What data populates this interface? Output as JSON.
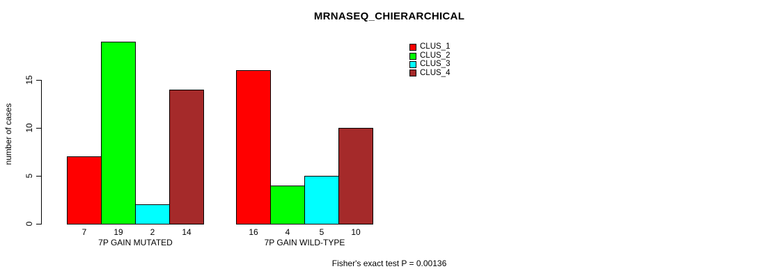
{
  "chart_data": {
    "type": "bar",
    "title": "MRNASEQ_CHIERARCHICAL",
    "xlabel": "",
    "ylabel": "number of cases",
    "ylim": [
      0,
      15
    ],
    "yticks": [
      0,
      5,
      10,
      15
    ],
    "grid": false,
    "legend_position": "top-right",
    "bar_value_labels": true,
    "categories": [
      "7P GAIN MUTATED",
      "7P GAIN WILD-TYPE"
    ],
    "series": [
      {
        "name": "CLUS_1",
        "color": "#ff0000",
        "values": [
          7,
          16
        ]
      },
      {
        "name": "CLUS_2",
        "color": "#00ff00",
        "values": [
          19,
          4
        ]
      },
      {
        "name": "CLUS_3",
        "color": "#00ffff",
        "values": [
          2,
          5
        ]
      },
      {
        "name": "CLUS_4",
        "color": "#a52a2a",
        "values": [
          14,
          10
        ]
      }
    ],
    "caption": "Fisher's exact test P = 0.00136"
  }
}
